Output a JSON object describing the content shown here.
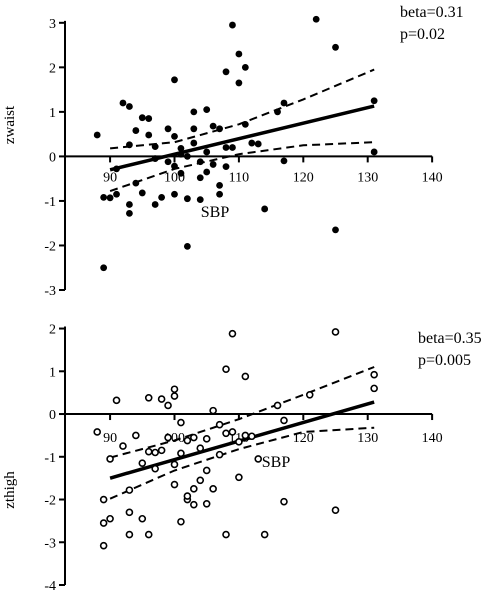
{
  "chart_data": [
    {
      "type": "scatter",
      "title": "",
      "xlabel": "SBP",
      "ylabel": "zwaist",
      "xlim": [
        83,
        142
      ],
      "ylim": [
        -3,
        3.4
      ],
      "x_ticks": [
        "90",
        "100",
        "110",
        "120",
        "130",
        "140"
      ],
      "y_ticks": [
        "3",
        "2",
        "1",
        "0",
        "-1",
        "-2",
        "-3"
      ],
      "annotations": [
        "beta=0.31",
        "p=0.02"
      ],
      "marker": "filled",
      "points": [
        [
          88,
          0.48
        ],
        [
          89,
          -0.92
        ],
        [
          90,
          -0.93
        ],
        [
          91,
          -0.85
        ],
        [
          91,
          -0.28
        ],
        [
          92,
          1.2
        ],
        [
          93,
          0.26
        ],
        [
          93,
          1.12
        ],
        [
          93,
          -1.08
        ],
        [
          93,
          -1.28
        ],
        [
          94,
          0.58
        ],
        [
          94,
          -0.6
        ],
        [
          95,
          0.87
        ],
        [
          95,
          -0.82
        ],
        [
          96,
          0.48
        ],
        [
          96,
          0.85
        ],
        [
          97,
          0.22
        ],
        [
          97,
          -0.05
        ],
        [
          97,
          -1.08
        ],
        [
          98,
          -0.92
        ],
        [
          99,
          0.62
        ],
        [
          99,
          -0.12
        ],
        [
          100,
          1.72
        ],
        [
          100,
          0.45
        ],
        [
          100,
          -0.22
        ],
        [
          100,
          -0.85
        ],
        [
          101,
          0.05
        ],
        [
          101,
          -0.38
        ],
        [
          101,
          0.18
        ],
        [
          102,
          -0.95
        ],
        [
          102,
          -2.02
        ],
        [
          102,
          0.0
        ],
        [
          103,
          0.62
        ],
        [
          103,
          1.0
        ],
        [
          103,
          0.3
        ],
        [
          104,
          -0.12
        ],
        [
          104,
          -0.48
        ],
        [
          104,
          -0.97
        ],
        [
          105,
          1.05
        ],
        [
          105,
          0.1
        ],
        [
          105,
          -0.35
        ],
        [
          106,
          0.68
        ],
        [
          106,
          -0.18
        ],
        [
          107,
          -0.65
        ],
        [
          107,
          -0.85
        ],
        [
          107,
          0.62
        ],
        [
          108,
          1.9
        ],
        [
          108,
          -0.23
        ],
        [
          108,
          0.2
        ],
        [
          109,
          2.95
        ],
        [
          109,
          0.2
        ],
        [
          110,
          2.3
        ],
        [
          110,
          1.65
        ],
        [
          111,
          2.0
        ],
        [
          111,
          0.72
        ],
        [
          112,
          0.3
        ],
        [
          113,
          0.28
        ],
        [
          114,
          -1.18
        ],
        [
          116,
          1.0
        ],
        [
          117,
          1.2
        ],
        [
          117,
          -0.1
        ],
        [
          122,
          3.08
        ],
        [
          125,
          2.45
        ],
        [
          125,
          -1.65
        ],
        [
          131,
          1.25
        ],
        [
          131,
          0.1
        ],
        [
          89,
          -2.5
        ]
      ],
      "fit": {
        "x1": 90,
        "y1": -0.3,
        "x2": 131,
        "y2": 1.13
      },
      "ci_upper": [
        [
          90,
          0.18
        ],
        [
          100,
          0.32
        ],
        [
          110,
          0.72
        ],
        [
          120,
          1.28
        ],
        [
          131,
          1.95
        ]
      ],
      "ci_lower": [
        [
          90,
          -0.78
        ],
        [
          100,
          -0.28
        ],
        [
          110,
          0.05
        ],
        [
          120,
          0.25
        ],
        [
          131,
          0.32
        ]
      ]
    },
    {
      "type": "scatter",
      "title": "",
      "xlabel": "SBP",
      "ylabel": "zthigh",
      "xlim": [
        83,
        142
      ],
      "ylim": [
        -4,
        2.2
      ],
      "x_ticks": [
        "90",
        "100",
        "110",
        "120",
        "130",
        "140"
      ],
      "y_ticks": [
        "2",
        "1",
        "0",
        "-1",
        "-2",
        "-3",
        "-4"
      ],
      "annotations": [
        "beta=0.35",
        "p=0.005"
      ],
      "marker": "open",
      "points": [
        [
          88,
          -0.42
        ],
        [
          89,
          -2.0
        ],
        [
          89,
          -3.08
        ],
        [
          90,
          -2.45
        ],
        [
          90,
          -1.05
        ],
        [
          91,
          0.32
        ],
        [
          92,
          -0.75
        ],
        [
          93,
          -2.3
        ],
        [
          93,
          -2.82
        ],
        [
          93,
          -1.78
        ],
        [
          94,
          -0.5
        ],
        [
          95,
          -1.15
        ],
        [
          95,
          -2.45
        ],
        [
          96,
          -2.82
        ],
        [
          96,
          -0.88
        ],
        [
          96,
          0.38
        ],
        [
          97,
          -1.28
        ],
        [
          97,
          -0.9
        ],
        [
          98,
          -0.85
        ],
        [
          98,
          0.35
        ],
        [
          99,
          -0.55
        ],
        [
          99,
          0.2
        ],
        [
          100,
          0.58
        ],
        [
          100,
          -1.18
        ],
        [
          100,
          -1.65
        ],
        [
          100,
          0.42
        ],
        [
          101,
          -2.52
        ],
        [
          101,
          -0.2
        ],
        [
          101,
          -0.92
        ],
        [
          102,
          -2.0
        ],
        [
          102,
          -1.92
        ],
        [
          102,
          -0.62
        ],
        [
          103,
          -2.12
        ],
        [
          103,
          -1.75
        ],
        [
          103,
          -0.55
        ],
        [
          104,
          -0.8
        ],
        [
          104,
          -1.55
        ],
        [
          105,
          -2.1
        ],
        [
          105,
          -0.58
        ],
        [
          105,
          -1.32
        ],
        [
          106,
          0.08
        ],
        [
          106,
          -1.75
        ],
        [
          107,
          -0.95
        ],
        [
          107,
          -0.25
        ],
        [
          108,
          -2.82
        ],
        [
          108,
          1.05
        ],
        [
          108,
          -0.45
        ],
        [
          109,
          1.88
        ],
        [
          109,
          -0.42
        ],
        [
          110,
          -1.48
        ],
        [
          110,
          -0.65
        ],
        [
          111,
          0.88
        ],
        [
          111,
          -0.5
        ],
        [
          112,
          -0.52
        ],
        [
          113,
          -1.05
        ],
        [
          114,
          -2.82
        ],
        [
          116,
          0.2
        ],
        [
          117,
          -0.15
        ],
        [
          117,
          -2.05
        ],
        [
          121,
          0.45
        ],
        [
          125,
          1.92
        ],
        [
          125,
          -2.25
        ],
        [
          131,
          0.92
        ],
        [
          131,
          0.6
        ],
        [
          89,
          -2.55
        ]
      ],
      "fit": {
        "x1": 90,
        "y1": -1.5,
        "x2": 131,
        "y2": 0.28
      },
      "ci_upper": [
        [
          90,
          -1.02
        ],
        [
          100,
          -0.62
        ],
        [
          110,
          -0.12
        ],
        [
          120,
          0.45
        ],
        [
          131,
          1.1
        ]
      ],
      "ci_lower": [
        [
          90,
          -1.98
        ],
        [
          100,
          -1.32
        ],
        [
          110,
          -0.82
        ],
        [
          120,
          -0.42
        ],
        [
          131,
          -0.32
        ]
      ]
    }
  ]
}
